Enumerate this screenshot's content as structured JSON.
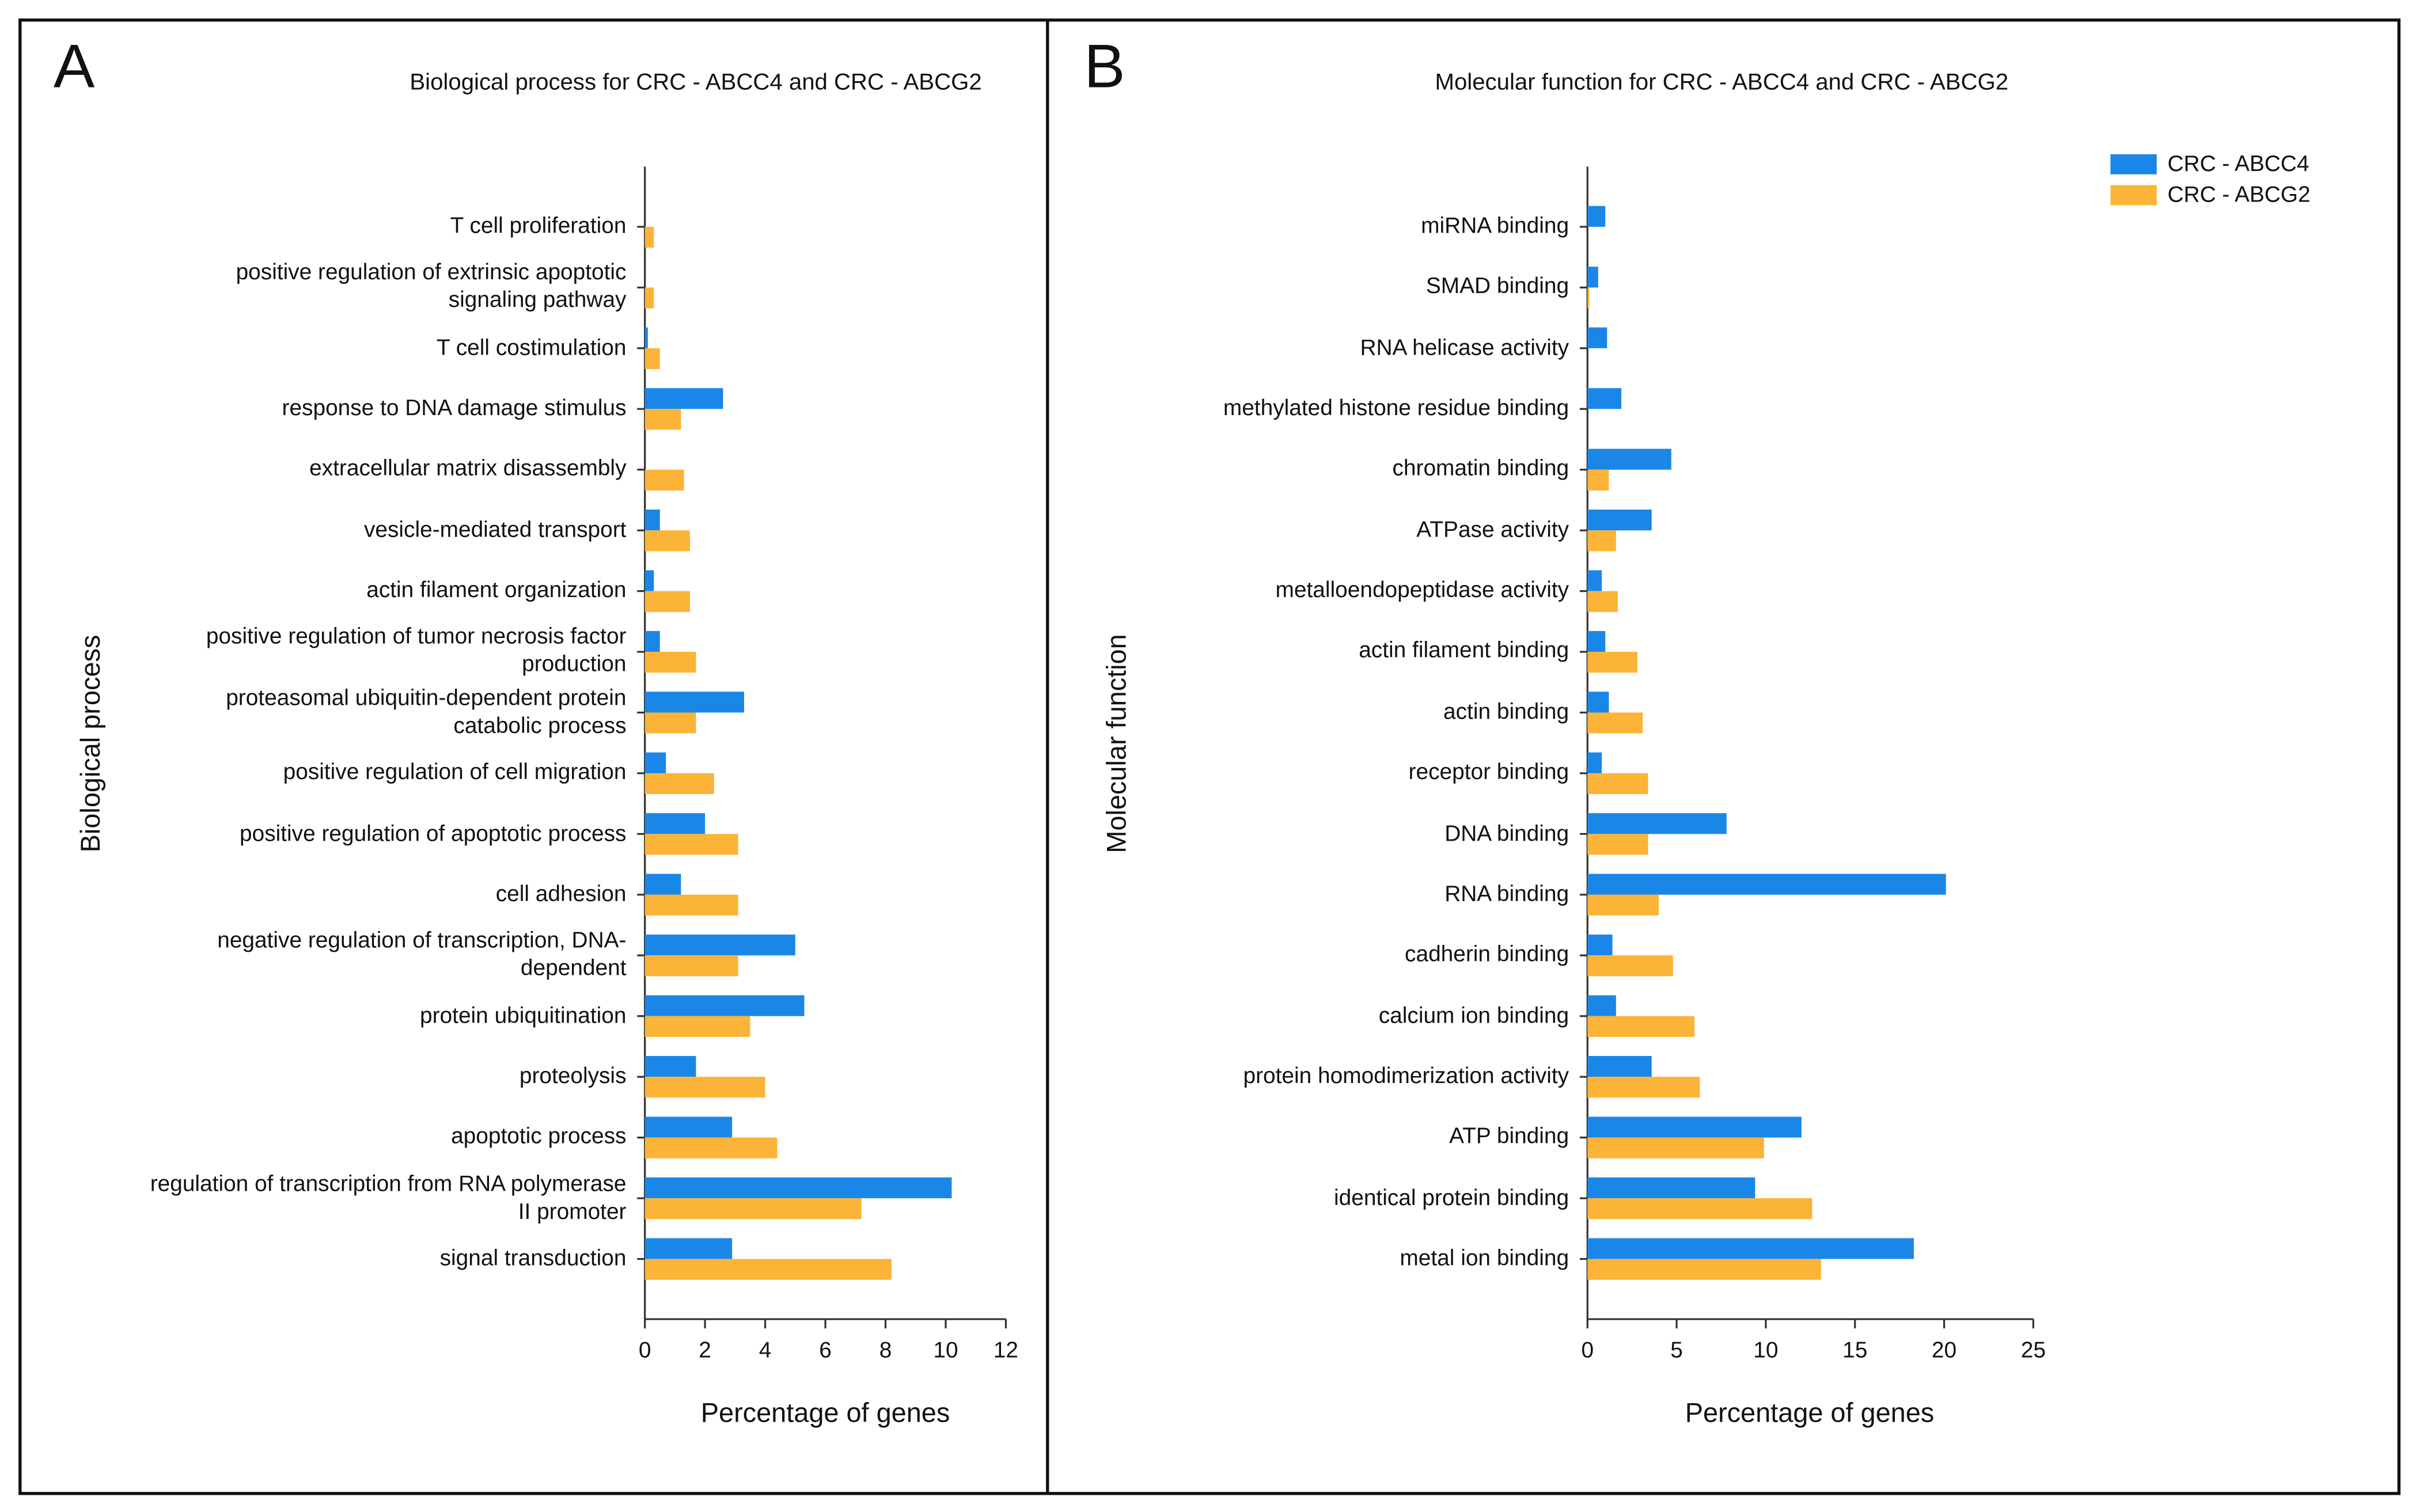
{
  "chart_data": [
    {
      "type": "bar",
      "orientation": "horizontal",
      "panel_label": "A",
      "title": "Biological process for CRC - ABCC4 and CRC - ABCG2",
      "y_label": "Biological process",
      "x_label": "Percentage of genes",
      "categories": [
        "T cell proliferation",
        "positive regulation of extrinsic apoptotic signaling pathway",
        "T cell costimulation",
        "response to DNA damage stimulus",
        "extracellular matrix disassembly",
        "vesicle-mediated transport",
        "actin filament organization",
        "positive regulation of tumor necrosis factor production",
        "proteasomal ubiquitin-dependent protein catabolic process",
        "positive regulation of cell migration",
        "positive regulation of apoptotic process",
        "cell adhesion",
        "negative regulation of transcription, DNA-dependent",
        "protein ubiquitination",
        "proteolysis",
        "apoptotic process",
        "regulation of transcription from RNA polymerase II promoter",
        "signal transduction"
      ],
      "series": [
        {
          "color": "#1a87e8",
          "values": [
            0,
            0,
            0.1,
            2.6,
            0,
            0.5,
            0.3,
            0.5,
            3.3,
            0.7,
            2.0,
            1.2,
            5.0,
            5.3,
            1.7,
            2.9,
            10.2,
            2.9
          ]
        },
        {
          "color": "#fbb437",
          "values": [
            0.3,
            0.3,
            0.5,
            1.2,
            1.3,
            1.5,
            1.5,
            1.7,
            1.7,
            2.3,
            3.1,
            3.1,
            3.1,
            3.5,
            4.0,
            4.4,
            7.2,
            8.2
          ]
        }
      ],
      "xlim": [
        0,
        12
      ],
      "xticks": [
        0,
        2,
        4,
        6,
        8,
        10,
        12
      ],
      "legend": false
    },
    {
      "type": "bar",
      "orientation": "horizontal",
      "panel_label": "B",
      "title": "Molecular function for CRC - ABCC4 and CRC - ABCG2",
      "y_label": "Molecular function",
      "x_label": "Percentage of genes",
      "categories": [
        "miRNA binding",
        "SMAD binding",
        "RNA helicase activity",
        "methylated histone residue binding",
        "chromatin binding",
        "ATPase activity",
        "metalloendopeptidase activity",
        "actin filament binding",
        "actin binding",
        "receptor binding",
        "DNA binding",
        "RNA binding",
        "cadherin binding",
        "calcium ion binding",
        "protein homodimerization activity",
        "ATP binding",
        "identical protein binding",
        "metal ion binding"
      ],
      "series": [
        {
          "name": "CRC - ABCC4",
          "color": "#1a87e8",
          "values": [
            1.0,
            0.6,
            1.1,
            1.9,
            4.7,
            3.6,
            0.8,
            1.0,
            1.2,
            0.8,
            7.8,
            20.1,
            1.4,
            1.6,
            3.6,
            12.0,
            9.4,
            18.3
          ]
        },
        {
          "name": "CRC - ABCG2",
          "color": "#fbb437",
          "values": [
            0,
            0.1,
            0,
            0,
            1.2,
            1.6,
            1.7,
            2.8,
            3.1,
            3.4,
            3.4,
            4.0,
            4.8,
            6.0,
            6.3,
            9.9,
            12.6,
            13.1
          ]
        }
      ],
      "xlim": [
        0,
        25
      ],
      "xticks": [
        0,
        5,
        10,
        15,
        20,
        25
      ],
      "legend": "top-right"
    }
  ]
}
